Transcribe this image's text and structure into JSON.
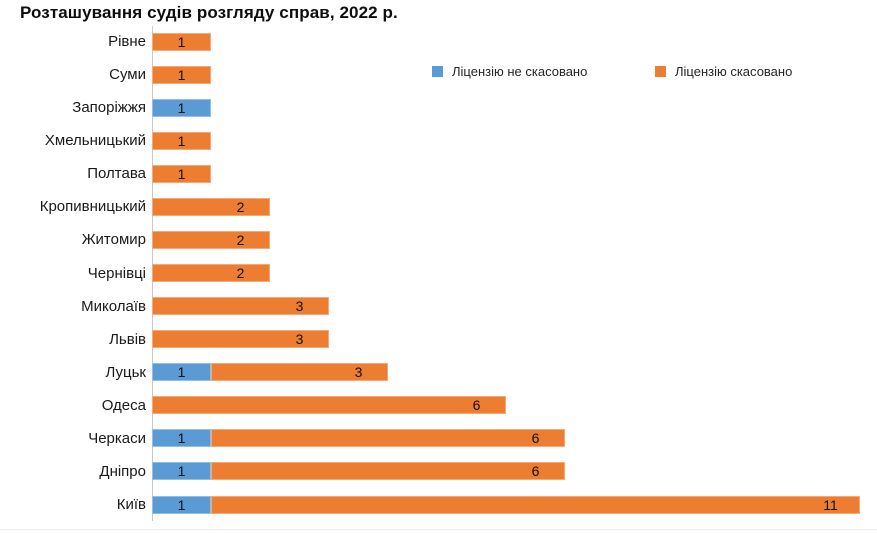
{
  "chart_data": {
    "type": "bar",
    "orientation": "horizontal",
    "stacked": true,
    "title": "Розташування судів розгляду справ, 2022 р.",
    "categories": [
      "Рівне",
      "Суми",
      "Запоріжжя",
      "Хмельницький",
      "Полтава",
      "Кропивницький",
      "Житомир",
      "Чернівці",
      "Миколаїв",
      "Львів",
      "Луцьк",
      "Одеса",
      "Черкаси",
      "Дніпро",
      "Київ"
    ],
    "series": [
      {
        "name": "Ліцензію не скасовано",
        "color": "#5B9BD5",
        "values": [
          0,
          0,
          1,
          0,
          0,
          0,
          0,
          0,
          0,
          0,
          1,
          0,
          1,
          1,
          1
        ]
      },
      {
        "name": "Ліцензію скасовано",
        "color": "#ED7D31",
        "values": [
          1,
          1,
          0,
          1,
          1,
          2,
          2,
          2,
          3,
          3,
          3,
          6,
          6,
          6,
          11
        ]
      }
    ],
    "xlim": [
      0,
      12
    ],
    "grid": false,
    "value_labels": "inside-end",
    "legend_position": "top-right"
  },
  "colors": {
    "axis_line": "#c9c9c9",
    "bottom_rule": "#ededed",
    "title_text": "#0d0d0d",
    "label_text": "#1a1a1a"
  }
}
